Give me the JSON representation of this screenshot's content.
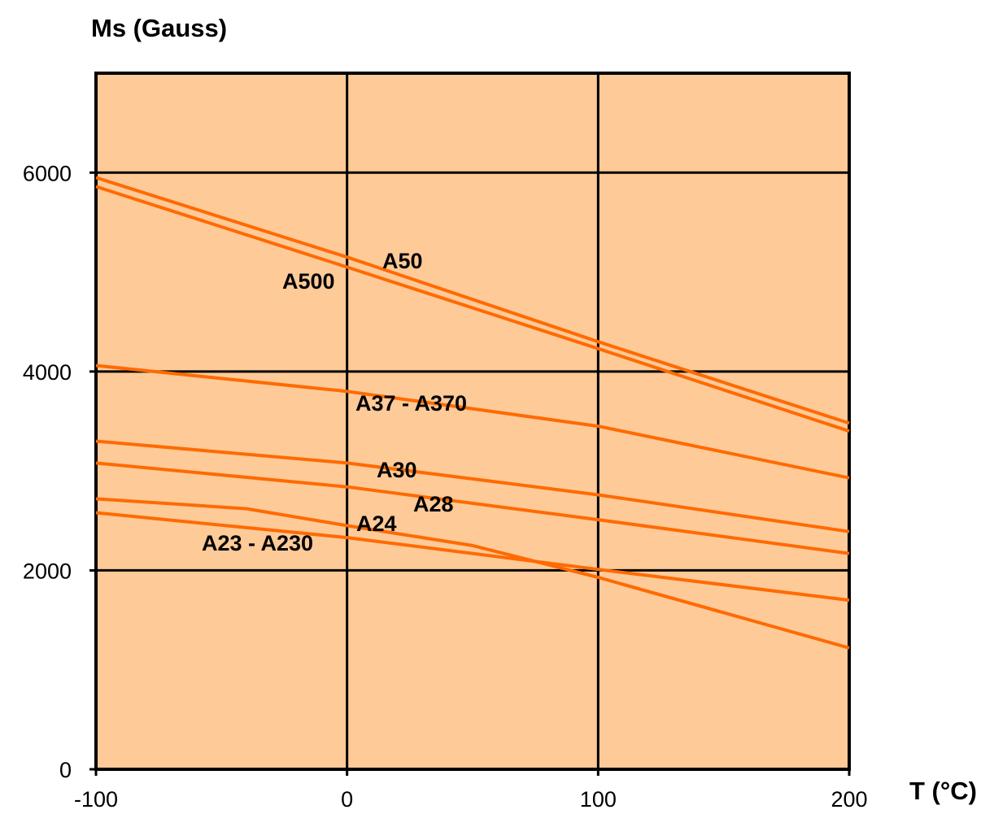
{
  "chart_data": {
    "type": "line",
    "ylabel": "Ms (Gauss)",
    "xlabel": "T (°C)",
    "xlim": [
      -100,
      200
    ],
    "ylim": [
      0,
      7000
    ],
    "x_ticks": [
      -100,
      0,
      100,
      200
    ],
    "y_ticks": [
      0,
      2000,
      4000,
      6000
    ],
    "x_tick_labels": [
      "-100",
      "0",
      "100",
      "200"
    ],
    "y_tick_labels": [
      "0",
      "2000",
      "4000",
      "6000"
    ],
    "grid": true,
    "colors": {
      "plot_background": "#FDCA98",
      "line": "#FF6A00",
      "grid": "#000000"
    },
    "series": [
      {
        "name": "A50",
        "x": [
          -100,
          0,
          100,
          200
        ],
        "y": [
          5950,
          5150,
          4300,
          3480
        ]
      },
      {
        "name": "A500",
        "x": [
          -100,
          0,
          100,
          200
        ],
        "y": [
          5860,
          5050,
          4230,
          3400
        ]
      },
      {
        "name": "A37 - A370",
        "x": [
          -100,
          0,
          100,
          200
        ],
        "y": [
          4060,
          3800,
          3450,
          2930
        ]
      },
      {
        "name": "A30",
        "x": [
          -100,
          0,
          100,
          200
        ],
        "y": [
          3300,
          3080,
          2760,
          2390
        ]
      },
      {
        "name": "A28",
        "x": [
          -100,
          0,
          100,
          200
        ],
        "y": [
          3080,
          2840,
          2510,
          2170
        ]
      },
      {
        "name": "A24",
        "x": [
          -100,
          -40,
          0,
          50,
          100,
          200
        ],
        "y": [
          2720,
          2620,
          2450,
          2250,
          1930,
          1220
        ]
      },
      {
        "name": "A23 - A230",
        "x": [
          -100,
          0,
          100,
          200
        ],
        "y": [
          2580,
          2330,
          2010,
          1700
        ]
      }
    ]
  }
}
